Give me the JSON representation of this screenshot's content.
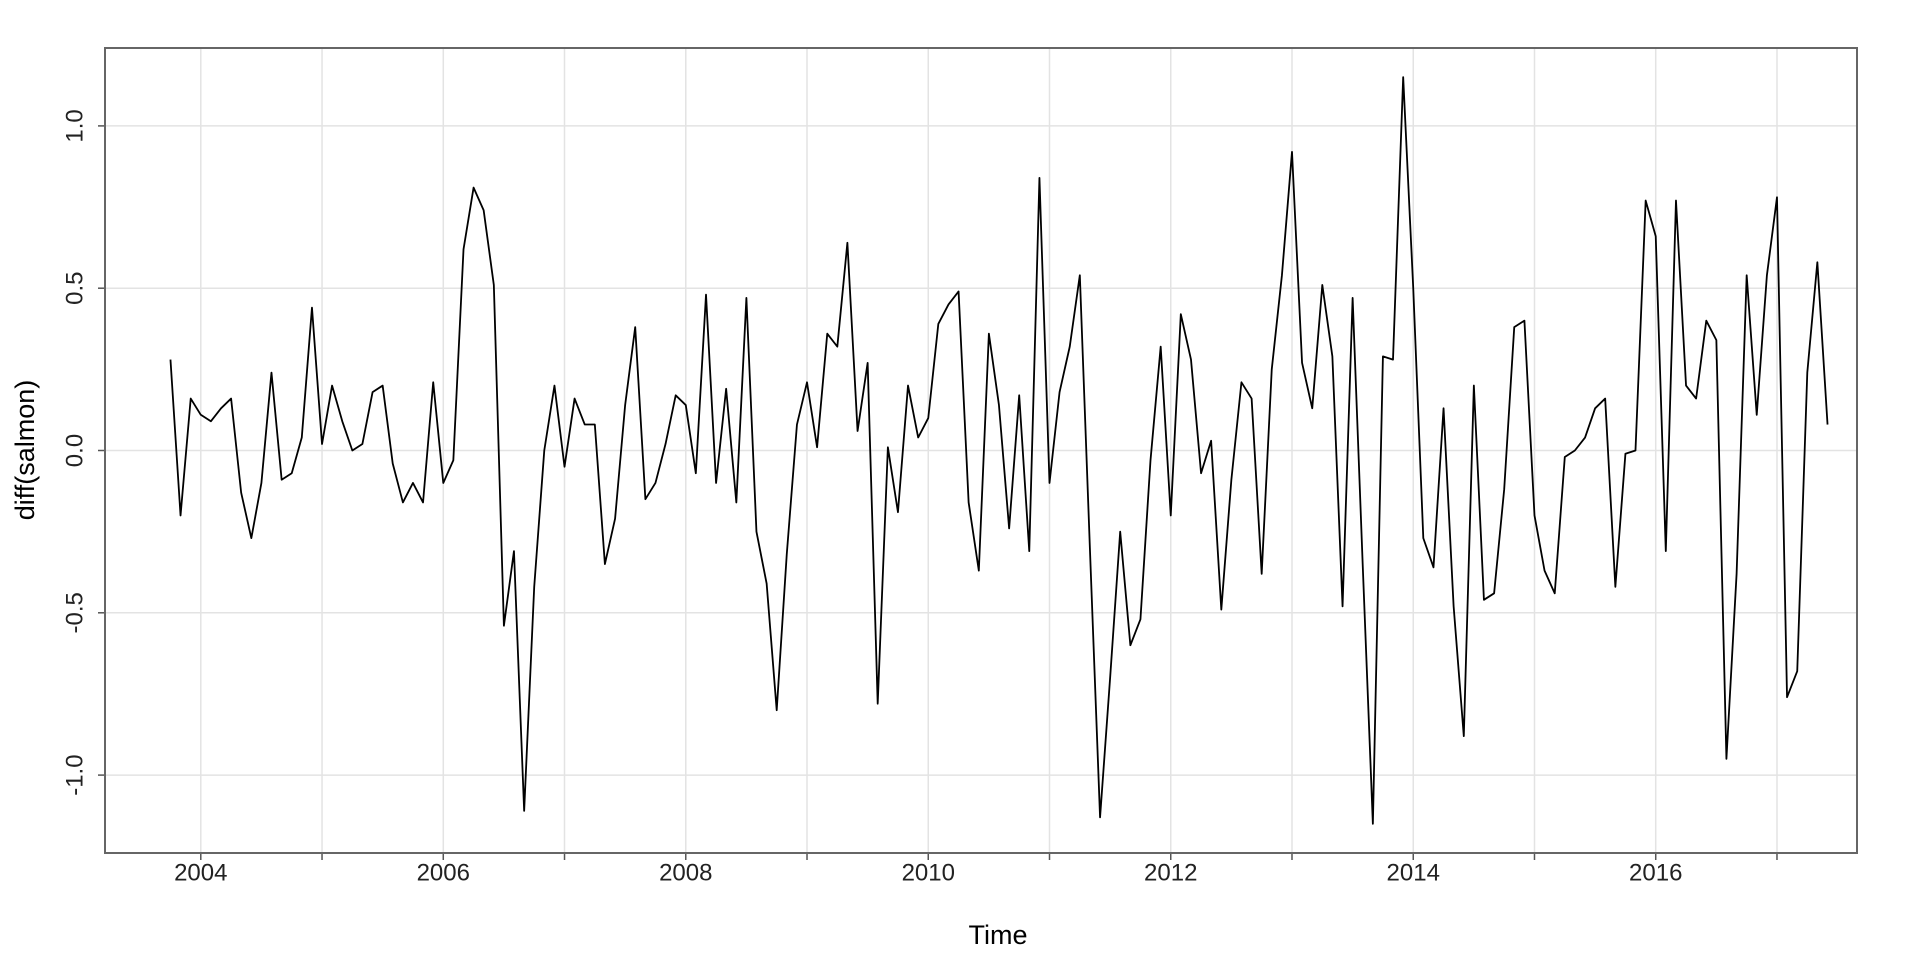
{
  "chart_data": {
    "type": "line",
    "x_label": "Time",
    "y_label": "diff(salmon)",
    "x": [
      2003.75,
      2003.833,
      2003.917,
      2004,
      2004.083,
      2004.167,
      2004.25,
      2004.333,
      2004.417,
      2004.5,
      2004.583,
      2004.667,
      2004.75,
      2004.833,
      2004.917,
      2005,
      2005.083,
      2005.167,
      2005.25,
      2005.333,
      2005.417,
      2005.5,
      2005.583,
      2005.667,
      2005.75,
      2005.833,
      2005.917,
      2006,
      2006.083,
      2006.167,
      2006.25,
      2006.333,
      2006.417,
      2006.5,
      2006.583,
      2006.667,
      2006.75,
      2006.833,
      2006.917,
      2007,
      2007.083,
      2007.167,
      2007.25,
      2007.333,
      2007.417,
      2007.5,
      2007.583,
      2007.667,
      2007.75,
      2007.833,
      2007.917,
      2008,
      2008.083,
      2008.167,
      2008.25,
      2008.333,
      2008.417,
      2008.5,
      2008.583,
      2008.667,
      2008.75,
      2008.833,
      2008.917,
      2009,
      2009.083,
      2009.167,
      2009.25,
      2009.333,
      2009.417,
      2009.5,
      2009.583,
      2009.667,
      2009.75,
      2009.833,
      2009.917,
      2010,
      2010.083,
      2010.167,
      2010.25,
      2010.333,
      2010.417,
      2010.5,
      2010.583,
      2010.667,
      2010.75,
      2010.833,
      2010.917,
      2011,
      2011.083,
      2011.167,
      2011.25,
      2011.333,
      2011.417,
      2011.5,
      2011.583,
      2011.667,
      2011.75,
      2011.833,
      2011.917,
      2012,
      2012.083,
      2012.167,
      2012.25,
      2012.333,
      2012.417,
      2012.5,
      2012.583,
      2012.667,
      2012.75,
      2012.833,
      2012.917,
      2013,
      2013.083,
      2013.167,
      2013.25,
      2013.333,
      2013.417,
      2013.5,
      2013.583,
      2013.667,
      2013.75,
      2013.833,
      2013.917,
      2014,
      2014.083,
      2014.167,
      2014.25,
      2014.333,
      2014.417,
      2014.5,
      2014.583,
      2014.667,
      2014.75,
      2014.833,
      2014.917,
      2015,
      2015.083,
      2015.167,
      2015.25,
      2015.333,
      2015.417,
      2015.5,
      2015.583,
      2015.667,
      2015.75,
      2015.833,
      2015.917,
      2016,
      2016.083,
      2016.167,
      2016.25,
      2016.333,
      2016.417,
      2016.5,
      2016.583,
      2016.667,
      2016.75,
      2016.833,
      2016.917,
      2017,
      2017.083,
      2017.167,
      2017.25,
      2017.333,
      2017.417
    ],
    "series": [
      {
        "color": "#000000",
        "values": [
          0.28,
          -0.2,
          0.16,
          0.11,
          0.09,
          0.13,
          0.16,
          -0.13,
          -0.27,
          -0.1,
          0.24,
          -0.09,
          -0.07,
          0.04,
          0.44,
          0.02,
          0.2,
          0.09,
          0.0,
          0.02,
          0.18,
          0.2,
          -0.04,
          -0.16,
          -0.1,
          -0.16,
          0.21,
          -0.1,
          -0.03,
          0.62,
          0.81,
          0.74,
          0.51,
          -0.54,
          -0.31,
          -1.11,
          -0.42,
          0.0,
          0.2,
          -0.05,
          0.16,
          0.08,
          0.08,
          -0.35,
          -0.21,
          0.14,
          0.38,
          -0.15,
          -0.1,
          0.02,
          0.17,
          0.14,
          -0.07,
          0.48,
          -0.1,
          0.19,
          -0.16,
          0.47,
          -0.25,
          -0.41,
          -0.8,
          -0.32,
          0.08,
          0.21,
          0.01,
          0.36,
          0.32,
          0.64,
          0.06,
          0.27,
          -0.78,
          0.01,
          -0.19,
          0.2,
          0.04,
          0.1,
          0.39,
          0.45,
          0.49,
          -0.16,
          -0.37,
          0.36,
          0.14,
          -0.24,
          0.17,
          -0.31,
          0.84,
          -0.1,
          0.18,
          0.32,
          0.54,
          -0.3,
          -1.13,
          -0.7,
          -0.25,
          -0.6,
          -0.52,
          -0.03,
          0.32,
          -0.2,
          0.42,
          0.28,
          -0.07,
          0.03,
          -0.49,
          -0.09,
          0.21,
          0.16,
          -0.38,
          0.25,
          0.54,
          0.92,
          0.27,
          0.13,
          0.51,
          0.29,
          -0.48,
          0.47,
          -0.35,
          -1.15,
          0.29,
          0.28,
          1.15,
          0.5,
          -0.27,
          -0.36,
          0.13,
          -0.48,
          -0.88,
          0.2,
          -0.46,
          -0.44,
          -0.12,
          0.38,
          0.4,
          -0.2,
          -0.37,
          -0.44,
          -0.02,
          0.0,
          0.04,
          0.13,
          0.16,
          -0.42,
          -0.01,
          0.0,
          0.77,
          0.66,
          -0.31,
          0.77,
          0.2,
          0.16,
          0.4,
          0.34,
          -0.95,
          -0.38,
          0.54,
          0.11,
          0.54,
          0.78,
          -0.76,
          -0.68,
          0.24,
          0.58,
          0.08
        ]
      }
    ],
    "xlim": [
      2003.21,
      2017.66
    ],
    "xticks": [
      2004,
      2006,
      2008,
      2010,
      2012,
      2014,
      2016
    ],
    "x_minor_ticks": [
      2005,
      2007,
      2009,
      2011,
      2013,
      2015,
      2017
    ],
    "ylim": [
      -1.24,
      1.24
    ],
    "yticks": [
      {
        "value": -1,
        "label": "-1.0"
      },
      {
        "value": -0.5,
        "label": "-0.5"
      },
      {
        "value": 0,
        "label": "0.0"
      },
      {
        "value": 0.5,
        "label": "0.5"
      },
      {
        "value": 1,
        "label": "1.0"
      }
    ],
    "grid": true
  }
}
